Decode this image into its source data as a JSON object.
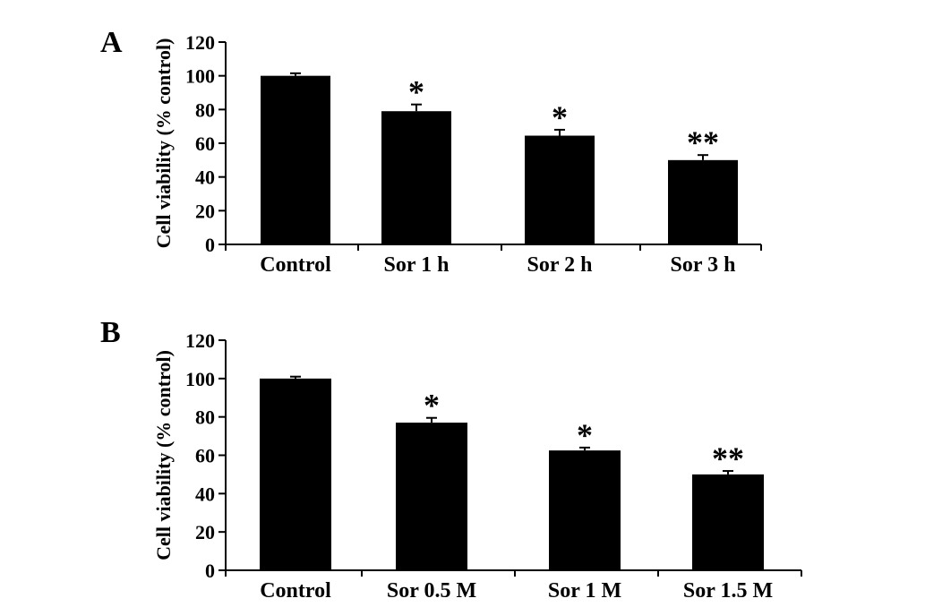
{
  "chart_data": [
    {
      "panel_label": "A",
      "type": "bar",
      "categories": [
        "Control",
        "Sor 1 h",
        "Sor 2 h",
        "Sor 3 h"
      ],
      "values": [
        100,
        79,
        64.5,
        50
      ],
      "errors": [
        1.5,
        4,
        3.5,
        3
      ],
      "annotations": [
        "",
        "*",
        "*",
        "**"
      ],
      "ylabel": "Cell viability (% control)",
      "xlabel": "",
      "ylim": [
        0,
        120
      ],
      "yticks": [
        0,
        20,
        40,
        60,
        80,
        100,
        120
      ],
      "bar_color": "#000000",
      "grid": false
    },
    {
      "panel_label": "B",
      "type": "bar",
      "categories": [
        "Control",
        "Sor 0.5 M",
        "Sor 1 M",
        "Sor 1.5 M"
      ],
      "values": [
        100,
        77,
        62.5,
        50
      ],
      "errors": [
        1,
        2.5,
        1.5,
        1.8
      ],
      "annotations": [
        "",
        "*",
        "*",
        "**"
      ],
      "ylabel": "Cell viability (% control)",
      "xlabel": "",
      "ylim": [
        0,
        120
      ],
      "yticks": [
        0,
        20,
        40,
        60,
        80,
        100,
        120
      ],
      "bar_color": "#000000",
      "grid": false
    }
  ]
}
